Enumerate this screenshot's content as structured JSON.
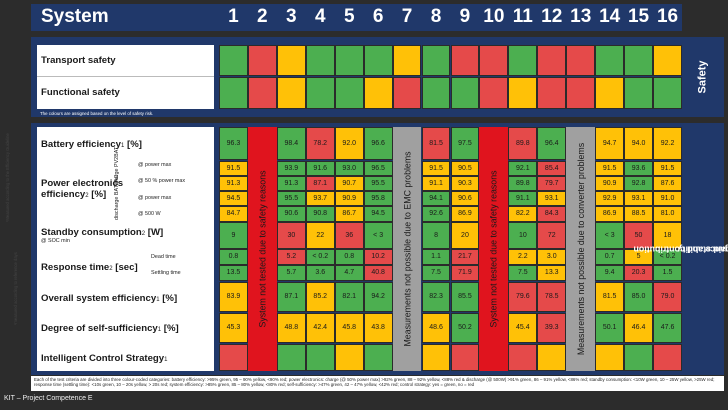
{
  "header": {
    "title": "System",
    "columns": [
      "1",
      "2",
      "3",
      "4",
      "5",
      "6",
      "7",
      "8",
      "9",
      "10",
      "11",
      "12",
      "13",
      "14",
      "15",
      "16"
    ]
  },
  "safety": {
    "side_label": "Safety",
    "rows": [
      {
        "label": "Transport safety"
      },
      {
        "label": "Functional safety"
      }
    ],
    "note": "The colours are assigned based on the level of safety risk."
  },
  "performance": {
    "side_label_line1": "Performance and contribution",
    "side_label_line2": "to grid stability",
    "rows": {
      "battery": {
        "label": "Battery efficiency",
        "sup": "1",
        "unit": " [%]"
      },
      "power": {
        "label_line1": "Power electronics",
        "label_line2": "efficiency",
        "sup": "2",
        "unit": " [%]",
        "charge_group": "charge PV2BAT",
        "discharge_group": "discharge BAT2AC",
        "sub1": "@ power max",
        "sub2": "@ 50 % power max",
        "sub3": "@ power max",
        "sub4": "@ 500 W"
      },
      "standby": {
        "label": "Standby consumption",
        "sup": "2",
        "unit": " [W]",
        "sub": "@ SOC min"
      },
      "response": {
        "label": "Response time",
        "sup": "2",
        "unit": " [sec]",
        "sub1": "Dead time",
        "sub2": "Settling time"
      },
      "overall": {
        "label": "Overall system efficiency",
        "sup": "1",
        "unit": " [%]"
      },
      "self_suff": {
        "label": "Degree of self-sufficiency",
        "sup": "1",
        "unit": " [%]"
      },
      "intelligent": {
        "label": "Intelligent Control Strategy",
        "sup": "1"
      }
    },
    "banners": {
      "col2": "System not tested due to safety reasons",
      "col7": "Measurements not possible due to EMC problems",
      "col10": "System not tested due to safety reasons",
      "col13": "Measurements not possible due to converter problems"
    },
    "values": {
      "battery": [
        "96.3",
        "",
        "98.4",
        "78.2",
        "92.0",
        "96.6",
        "",
        "81.5",
        "97.5",
        "",
        "89.8",
        "96.4",
        "",
        "94.7",
        "94.0",
        "92.2"
      ],
      "pe1": [
        "91.5",
        "",
        "93.9",
        "91.6",
        "93.0",
        "96.5",
        "",
        "91.5",
        "90.5",
        "",
        "92.1",
        "85.4",
        "",
        "91.5",
        "93.6",
        "91.5"
      ],
      "pe2": [
        "91.3",
        "",
        "91.3",
        "87.1",
        "90.7",
        "95.5",
        "",
        "91.1",
        "90.3",
        "",
        "89.8",
        "79.7",
        "",
        "90.9",
        "92.8",
        "87.6"
      ],
      "pe3": [
        "94.5",
        "",
        "95.5",
        "93.7",
        "90.9",
        "95.8",
        "",
        "94.1",
        "90.6",
        "",
        "91.1",
        "93.1",
        "",
        "92.9",
        "93.1",
        "91.0"
      ],
      "pe4": [
        "84.7",
        "",
        "90.6",
        "90.8",
        "86.7",
        "94.5",
        "",
        "92.6",
        "86.9",
        "",
        "82.2",
        "84.3",
        "",
        "86.9",
        "88.5",
        "81.0"
      ],
      "standby": [
        "9",
        "",
        "30",
        "22",
        "36",
        "< 3",
        "",
        "8",
        "20",
        "",
        "10",
        "72",
        "",
        "< 3",
        "50",
        "18"
      ],
      "dead": [
        "0.8",
        "",
        "5.2",
        "< 0.2",
        "0.8",
        "10.2",
        "",
        "1.1",
        "21.7",
        "",
        "2.2",
        "3.0",
        "",
        "0.7",
        "5",
        "< 0.2"
      ],
      "settling": [
        "13.5",
        "",
        "5.7",
        "3.6",
        "4.7",
        "40.8",
        "",
        "7.5",
        "71.9",
        "",
        "7.5",
        "13.3",
        "",
        "9.4",
        "20.3",
        "1.5"
      ],
      "overall": [
        "83.9",
        "",
        "87.1",
        "85.2",
        "82.1",
        "94.2",
        "",
        "82.3",
        "85.5",
        "",
        "79.6",
        "78.5",
        "",
        "81.5",
        "85.0",
        "79.0"
      ],
      "self_suff": [
        "45.3",
        "",
        "48.8",
        "42.4",
        "45.8",
        "43.8",
        "",
        "48.6",
        "50.2",
        "",
        "45.4",
        "39.3",
        "",
        "50.1",
        "46.4",
        "47.6"
      ]
    }
  },
  "colors": {
    "green": "#4caf50",
    "yellow": "#ffc107",
    "red": "#e54a4a",
    "navy": "#20386a",
    "grey": "#a0a0a0",
    "banner_red": "#e0141e"
  },
  "grid_colors": {
    "transport": [
      "g",
      "r",
      "y",
      "g",
      "g",
      "g",
      "y",
      "g",
      "r",
      "r",
      "g",
      "r",
      "r",
      "g",
      "g",
      "y"
    ],
    "functional": [
      "g",
      "r",
      "y",
      "g",
      "g",
      "y",
      "r",
      "g",
      "g",
      "r",
      "y",
      "r",
      "r",
      "y",
      "g",
      "g"
    ],
    "battery": [
      "g",
      "",
      "g",
      "r",
      "y",
      "g",
      "",
      "r",
      "g",
      "",
      "r",
      "g",
      "",
      "y",
      "y",
      "y"
    ],
    "pe1": [
      "y",
      "",
      "g",
      "g",
      "g",
      "g",
      "",
      "y",
      "y",
      "",
      "g",
      "r",
      "",
      "y",
      "g",
      "y"
    ],
    "pe2": [
      "y",
      "",
      "g",
      "r",
      "y",
      "g",
      "",
      "y",
      "y",
      "",
      "g",
      "r",
      "",
      "y",
      "g",
      "y"
    ],
    "pe3": [
      "y",
      "",
      "g",
      "y",
      "y",
      "g",
      "",
      "g",
      "y",
      "",
      "g",
      "y",
      "",
      "y",
      "y",
      "y"
    ],
    "pe4": [
      "y",
      "",
      "g",
      "g",
      "y",
      "g",
      "",
      "g",
      "y",
      "",
      "y",
      "r",
      "",
      "y",
      "y",
      "y"
    ],
    "standby": [
      "g",
      "",
      "r",
      "y",
      "r",
      "g",
      "",
      "g",
      "y",
      "",
      "g",
      "r",
      "",
      "g",
      "r",
      "y"
    ],
    "dead": [
      "g",
      "",
      "r",
      "g",
      "g",
      "r",
      "",
      "g",
      "r",
      "",
      "y",
      "y",
      "",
      "g",
      "y",
      "g"
    ],
    "settling": [
      "g",
      "",
      "g",
      "g",
      "g",
      "r",
      "",
      "g",
      "r",
      "",
      "g",
      "y",
      "",
      "g",
      "r",
      "g"
    ],
    "overall": [
      "y",
      "",
      "g",
      "y",
      "g",
      "g",
      "",
      "g",
      "g",
      "",
      "r",
      "r",
      "",
      "y",
      "g",
      "r"
    ],
    "self_suff": [
      "y",
      "",
      "y",
      "y",
      "y",
      "y",
      "",
      "y",
      "g",
      "",
      "y",
      "r",
      "",
      "g",
      "y",
      "g"
    ],
    "intelligent": [
      "r",
      "",
      "g",
      "g",
      "y",
      "g",
      "",
      "y",
      "r",
      "",
      "r",
      "y",
      "",
      "y",
      "g",
      "r"
    ]
  },
  "left_margin": {
    "text1": "¹Measured according to the Efficiency Guideline",
    "text2": "²measured according to reference days"
  },
  "bottom_note": "Each of the test criteria are divided into three colour-coded categories: battery efficiency: >95% green, 95 – 90% yellow, <90% red; power electronics: charge (@ 50% power max) >92% green, 88 – 92% yellow, <88% red & discharge (@ 500W) >91% green, 86 – 91% yellow, <86% red; standby consumption: <10W green, 10 – 25W yellow, >25W red; response time (settling time): <10s green, 10 – 20s yellow, > 20s red; system efficiency: >85% green, 85 – 80% yellow, <80% red; self-sufficiency: >47% green, 42 – 47% yellow, <42% red; control strategy: yes = green, no = red",
  "footer": "KIT – Project Competence E"
}
